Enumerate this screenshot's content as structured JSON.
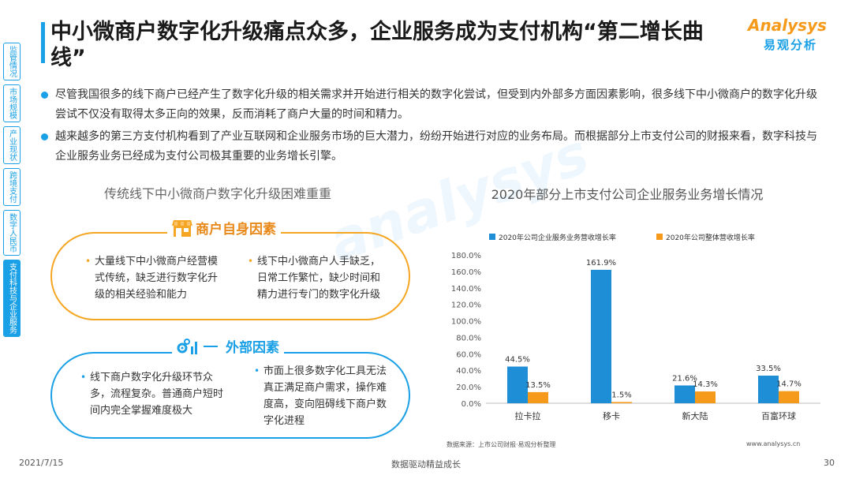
{
  "nav": {
    "items": [
      "监管情况",
      "市场规模",
      "产业现状",
      "跨境支付",
      "数字人民币",
      "支付科技与企业服务"
    ],
    "active_index": 5
  },
  "title": "中小微商户数字化升级痛点众多，企业服务成为支付机构“第二增长曲线”",
  "logo": {
    "en": "Analysys",
    "cn": "易观分析"
  },
  "bullets": [
    "尽管我国很多的线下商户已经产生了数字化升级的相关需求并开始进行相关的数字化尝试，但受到内外部多方面因素影响，很多线下中小微商户的数字化升级尝试不仅没有取得太多正向的效果，反而消耗了商户大量的时间和精力。",
    "越来越多的第三方支付机构看到了产业互联网和企业服务市场的巨大潜力，纷纷开始进行对应的业务布局。而根据部分上市支付公司的财报来看，数字科技与企业服务业务已经成为支付公司极其重要的业务增长引擎。"
  ],
  "left_panel": {
    "heading": "传统线下中小微商户数字化升级困难重重",
    "internal": {
      "label": "商户自身因素",
      "items": [
        "大量线下中小微商户经营模式传统，缺乏进行数字化升级的相关经验和能力",
        "线下中小微商户人手缺乏，日常工作繁忙，缺少时间和精力进行专门的数字化升级"
      ]
    },
    "external": {
      "label": "外部因素",
      "items": [
        "线下商户数字化升级环节众多，流程复杂。普通商户短时间内完全掌握难度极大",
        "市面上很多数字化工具无法真正满足商户需求，操作难度高，变向阻碍线下商户数字化进程"
      ]
    }
  },
  "chart_data": {
    "type": "bar",
    "title": "2020年部分上市支付公司企业服务业务增长情况",
    "categories": [
      "拉卡拉",
      "移卡",
      "新大陆",
      "百富环球"
    ],
    "series": [
      {
        "name": "2020年公司企业服务业务营收增长率",
        "values": [
          44.5,
          161.9,
          21.6,
          33.5
        ],
        "labels": [
          "44.5%",
          "161.9%",
          "21.6%",
          "33.5%"
        ],
        "color": "#1e8fd6"
      },
      {
        "name": "2020年公司整体营收增长率",
        "values": [
          13.5,
          1.5,
          14.3,
          14.7
        ],
        "labels": [
          "13.5%",
          "1.5%",
          "14.3%",
          "14.7%"
        ],
        "color": "#f59a1a"
      }
    ],
    "ylim": [
      0,
      180
    ],
    "yticks": [
      0,
      20,
      40,
      60,
      80,
      100,
      120,
      140,
      160,
      180
    ],
    "ytick_labels": [
      "0.0%",
      "20.0%",
      "40.0%",
      "60.0%",
      "80.0%",
      "100.0%",
      "120.0%",
      "140.0%",
      "160.0%",
      "180.0%"
    ],
    "legend": "top",
    "grid": false
  },
  "footer": {
    "source": "数据来源：上市公司财报·易观分析整理",
    "website": "www.analysys.cn",
    "date": "2021/7/15",
    "slogan": "数据驱动精益成长",
    "page": "30"
  }
}
